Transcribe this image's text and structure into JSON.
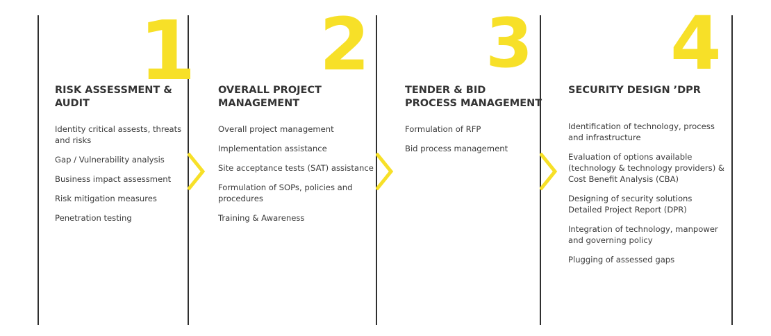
{
  "accent_color": "#f7e028",
  "divider_color": "#2f2f2f",
  "steps": [
    {
      "number": "1",
      "title_lines": [
        "RISK ASSESSMENT &",
        "AUDIT"
      ],
      "items": [
        [
          "Identity critical assests, threats",
          "and risks"
        ],
        [
          "Gap / Vulnerability analysis"
        ],
        [
          "Business impact assessment"
        ],
        [
          "Risk mitigation measures"
        ],
        [
          "Penetration testing"
        ]
      ]
    },
    {
      "number": "2",
      "title_lines": [
        "OVERALL PROJECT",
        "MANAGEMENT"
      ],
      "items": [
        [
          "Overall project management"
        ],
        [
          "Implementation assistance"
        ],
        [
          "Site acceptance tests (SAT) assistance"
        ],
        [
          "Formulation of SOPs, policies and",
          "procedures"
        ],
        [
          "Training & Awareness"
        ]
      ]
    },
    {
      "number": "3",
      "title_lines": [
        "TENDER & BID",
        "PROCESS MANAGEMENT"
      ],
      "items": [
        [
          "Formulation of RFP"
        ],
        [
          "Bid process management"
        ]
      ]
    },
    {
      "number": "4",
      "title_lines": [
        "SECURITY DESIGN ’DPR"
      ],
      "items": [
        [
          "Identification of technology, process",
          "and infrastructure"
        ],
        [
          "Evaluation of options available",
          "(technology & technology providers) &",
          "Cost Benefit Analysis (CBA)"
        ],
        [
          "Designing of security solutions",
          "Detailed Project Report (DPR)"
        ],
        [
          "Integration of technology, manpower",
          "and governing policy"
        ],
        [
          "Plugging of assessed gaps"
        ]
      ]
    }
  ]
}
